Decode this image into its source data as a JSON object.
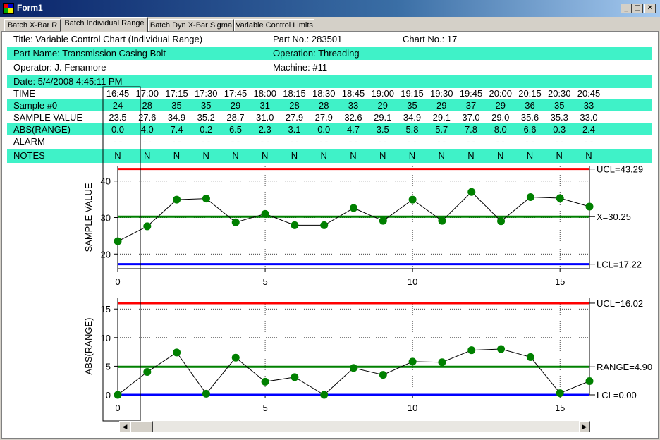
{
  "window": {
    "title": "Form1",
    "minimize": "_",
    "maximize": "□",
    "close": "✕"
  },
  "tabs": [
    {
      "label": "Batch X-Bar R"
    },
    {
      "label": "Batch Individual Range"
    },
    {
      "label": "Batch Dyn X-Bar Sigma"
    },
    {
      "label": "Variable Control Limits"
    }
  ],
  "header": {
    "title": "Title: Variable Control Chart (Individual Range)",
    "part_no": "Part No.: 283501",
    "chart_no": "Chart No.: 17",
    "part_name": "Part Name: Transmission Casing Bolt",
    "operation": "Operation: Threading",
    "operator": "Operator: J. Fenamore",
    "machine": "Machine: #11",
    "date": "Date: 5/4/2008 4:45:11 PM"
  },
  "table": {
    "labels": {
      "time": "TIME",
      "sample": "Sample #0",
      "value": "SAMPLE VALUE",
      "range": "ABS(RANGE)",
      "alarm": "ALARM",
      "notes": "NOTES"
    },
    "times": [
      "16:45",
      "17:00",
      "17:15",
      "17:30",
      "17:45",
      "18:00",
      "18:15",
      "18:30",
      "18:45",
      "19:00",
      "19:15",
      "19:30",
      "19:45",
      "20:00",
      "20:15",
      "20:30",
      "20:45"
    ],
    "samples": [
      "24",
      "28",
      "35",
      "35",
      "29",
      "31",
      "28",
      "28",
      "33",
      "29",
      "35",
      "29",
      "37",
      "29",
      "36",
      "35",
      "33"
    ],
    "values": [
      "23.5",
      "27.6",
      "34.9",
      "35.2",
      "28.7",
      "31.0",
      "27.9",
      "27.9",
      "32.6",
      "29.1",
      "34.9",
      "29.1",
      "37.0",
      "29.0",
      "35.6",
      "35.3",
      "33.0"
    ],
    "ranges": [
      "0.0",
      "4.0",
      "7.4",
      "0.2",
      "6.5",
      "2.3",
      "3.1",
      "0.0",
      "4.7",
      "3.5",
      "5.8",
      "5.7",
      "7.8",
      "8.0",
      "6.6",
      "0.3",
      "2.4"
    ],
    "alarms": [
      "-   -",
      "-   -",
      "-   -",
      "-   -",
      "-   -",
      "-   -",
      "-   -",
      "-   -",
      "-   -",
      "-   -",
      "-   -",
      "-   -",
      "-   -",
      "-   -",
      "-   -",
      "-   -",
      "-   -"
    ],
    "notes": [
      "N",
      "N",
      "N",
      "N",
      "N",
      "N",
      "N",
      "N",
      "N",
      "N",
      "N",
      "N",
      "N",
      "N",
      "N",
      "N",
      "N"
    ]
  },
  "chart_data": [
    {
      "type": "line",
      "ylabel": "SAMPLE VALUE",
      "x": [
        0,
        1,
        2,
        3,
        4,
        5,
        6,
        7,
        8,
        9,
        10,
        11,
        12,
        13,
        14,
        15,
        16
      ],
      "values": [
        23.5,
        27.6,
        34.9,
        35.2,
        28.7,
        31.0,
        27.9,
        27.9,
        32.6,
        29.1,
        34.9,
        29.1,
        37.0,
        29.0,
        35.6,
        35.3,
        33.0
      ],
      "xlim": [
        0,
        16
      ],
      "ylim": [
        16,
        44
      ],
      "xticks": [
        0,
        5,
        10,
        15
      ],
      "yticks": [
        20,
        30,
        40
      ],
      "limits": [
        {
          "label": "UCL=43.29",
          "value": 43.29,
          "color": "#ff0000"
        },
        {
          "label": "X=30.25",
          "value": 30.25,
          "color": "#008000"
        },
        {
          "label": "LCL=17.22",
          "value": 17.22,
          "color": "#0000ff"
        }
      ],
      "grid": true
    },
    {
      "type": "line",
      "ylabel": "ABS(RANGE)",
      "x": [
        0,
        1,
        2,
        3,
        4,
        5,
        6,
        7,
        8,
        9,
        10,
        11,
        12,
        13,
        14,
        15,
        16
      ],
      "values": [
        0.0,
        4.0,
        7.4,
        0.2,
        6.5,
        2.3,
        3.1,
        0.0,
        4.7,
        3.5,
        5.8,
        5.7,
        7.8,
        8.0,
        6.6,
        0.3,
        2.4
      ],
      "xlim": [
        0,
        16
      ],
      "ylim": [
        0,
        17
      ],
      "xticks": [
        0,
        5,
        10,
        15
      ],
      "yticks": [
        0,
        5,
        10,
        15
      ],
      "limits": [
        {
          "label": "UCL=16.02",
          "value": 16.02,
          "color": "#ff0000"
        },
        {
          "label": "RANGE=4.90",
          "value": 4.9,
          "color": "#008000"
        },
        {
          "label": "LCL=0.00",
          "value": 0.0,
          "color": "#0000ff"
        }
      ],
      "grid": true
    }
  ],
  "colors": {
    "row_highlight": "#3ff2c8",
    "marker": "#008000",
    "ucl": "#ff0000",
    "center": "#008000",
    "lcl": "#0000ff"
  },
  "scrollbar": {
    "left_arrow": "◀",
    "right_arrow": "▶"
  }
}
